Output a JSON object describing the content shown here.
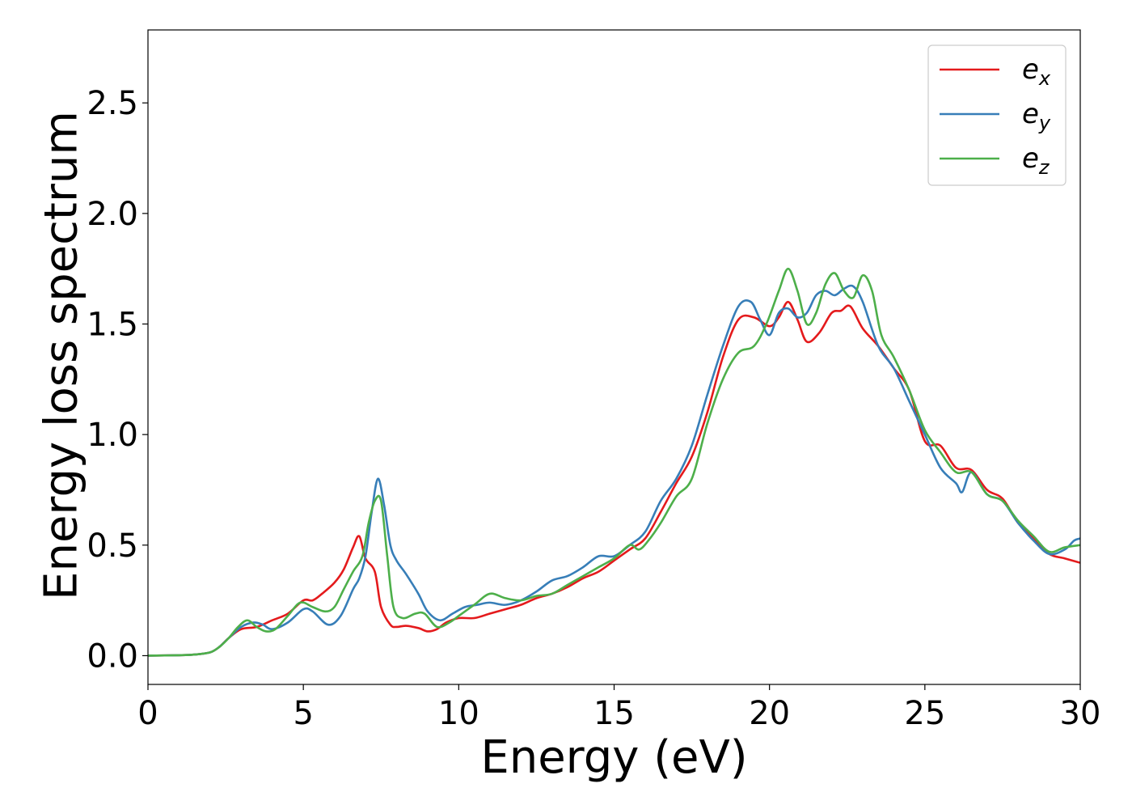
{
  "chart_data": {
    "type": "line",
    "title": "",
    "xlabel": "Energy (eV)",
    "ylabel": "Energy loss spectrum",
    "xlim": [
      0,
      30
    ],
    "ylim": [
      -0.13,
      2.83
    ],
    "xticks": [
      0,
      5,
      10,
      15,
      20,
      25,
      30
    ],
    "xtick_labels": [
      "0",
      "5",
      "10",
      "15",
      "20",
      "25",
      "30"
    ],
    "yticks": [
      0.0,
      0.5,
      1.0,
      1.5,
      2.0,
      2.5
    ],
    "ytick_labels": [
      "0.0",
      "0.5",
      "1.0",
      "1.5",
      "2.0",
      "2.5"
    ],
    "grid": false,
    "legend_position": "top-right",
    "series": [
      {
        "name": "e_x",
        "legend_base": "e",
        "legend_sub": "x",
        "color": "#e41a1c",
        "x": [
          0,
          1,
          1.5,
          2,
          2.3,
          2.6,
          3.0,
          3.5,
          4.0,
          4.5,
          5.0,
          5.3,
          5.6,
          6.0,
          6.3,
          6.6,
          6.8,
          7.0,
          7.3,
          7.5,
          7.8,
          8.0,
          8.3,
          8.7,
          9.0,
          9.3,
          9.6,
          10.0,
          10.5,
          11.0,
          11.5,
          12.0,
          12.5,
          13.0,
          13.5,
          14.0,
          14.5,
          15.0,
          15.5,
          16.0,
          16.5,
          17.0,
          17.5,
          18.0,
          18.5,
          19.0,
          19.5,
          20.0,
          20.3,
          20.6,
          20.9,
          21.2,
          21.6,
          22.0,
          22.3,
          22.6,
          23.0,
          23.5,
          24.0,
          24.5,
          25.0,
          25.5,
          26.0,
          26.5,
          27.0,
          27.5,
          28.0,
          28.5,
          29.0,
          29.5,
          30.0
        ],
        "y": [
          0,
          0.002,
          0.005,
          0.015,
          0.04,
          0.08,
          0.12,
          0.13,
          0.16,
          0.19,
          0.25,
          0.25,
          0.28,
          0.33,
          0.39,
          0.49,
          0.54,
          0.44,
          0.38,
          0.22,
          0.14,
          0.13,
          0.135,
          0.125,
          0.11,
          0.12,
          0.15,
          0.17,
          0.17,
          0.19,
          0.21,
          0.23,
          0.26,
          0.28,
          0.31,
          0.35,
          0.38,
          0.43,
          0.48,
          0.53,
          0.65,
          0.78,
          0.9,
          1.1,
          1.35,
          1.52,
          1.53,
          1.49,
          1.53,
          1.6,
          1.52,
          1.42,
          1.46,
          1.55,
          1.56,
          1.58,
          1.48,
          1.4,
          1.3,
          1.2,
          0.97,
          0.95,
          0.85,
          0.84,
          0.75,
          0.71,
          0.6,
          0.53,
          0.46,
          0.44,
          0.42
        ]
      },
      {
        "name": "e_y",
        "legend_base": "e",
        "legend_sub": "y",
        "color": "#377eb8",
        "x": [
          0,
          1,
          1.5,
          2,
          2.3,
          2.6,
          3.0,
          3.4,
          3.7,
          4.0,
          4.5,
          5.0,
          5.3,
          5.8,
          6.2,
          6.6,
          6.8,
          7.0,
          7.2,
          7.4,
          7.6,
          7.8,
          8.0,
          8.3,
          8.7,
          9.0,
          9.4,
          9.8,
          10.2,
          10.6,
          11.0,
          11.5,
          12.0,
          12.5,
          13.0,
          13.5,
          14.0,
          14.5,
          15.0,
          15.5,
          16.0,
          16.5,
          17.0,
          17.5,
          18.0,
          18.5,
          19.0,
          19.4,
          19.7,
          20.0,
          20.3,
          20.6,
          20.9,
          21.2,
          21.5,
          21.8,
          22.1,
          22.4,
          22.7,
          23.0,
          23.5,
          24.0,
          24.5,
          25.0,
          25.5,
          26.0,
          26.2,
          26.5,
          27.0,
          27.5,
          28.0,
          28.5,
          29.0,
          29.5,
          29.8,
          30.0
        ],
        "y": [
          0,
          0.002,
          0.005,
          0.015,
          0.04,
          0.08,
          0.13,
          0.15,
          0.14,
          0.12,
          0.15,
          0.21,
          0.2,
          0.14,
          0.18,
          0.3,
          0.35,
          0.45,
          0.65,
          0.8,
          0.68,
          0.5,
          0.43,
          0.37,
          0.28,
          0.2,
          0.16,
          0.19,
          0.22,
          0.23,
          0.24,
          0.23,
          0.25,
          0.29,
          0.34,
          0.36,
          0.4,
          0.45,
          0.45,
          0.5,
          0.56,
          0.7,
          0.8,
          0.95,
          1.18,
          1.4,
          1.58,
          1.6,
          1.52,
          1.45,
          1.55,
          1.57,
          1.53,
          1.55,
          1.63,
          1.65,
          1.63,
          1.66,
          1.67,
          1.6,
          1.4,
          1.3,
          1.15,
          1.0,
          0.85,
          0.78,
          0.74,
          0.83,
          0.73,
          0.7,
          0.6,
          0.52,
          0.46,
          0.48,
          0.52,
          0.53
        ]
      },
      {
        "name": "e_z",
        "legend_base": "e",
        "legend_sub": "z",
        "color": "#4daf4a",
        "x": [
          0,
          1,
          1.5,
          2,
          2.3,
          2.6,
          2.9,
          3.2,
          3.5,
          3.8,
          4.1,
          4.5,
          4.9,
          5.3,
          5.7,
          6.0,
          6.3,
          6.6,
          6.9,
          7.1,
          7.3,
          7.5,
          7.7,
          7.9,
          8.2,
          8.6,
          8.9,
          9.3,
          9.7,
          10.0,
          10.5,
          11.0,
          11.5,
          12.0,
          12.5,
          13.0,
          13.5,
          14.0,
          14.5,
          15.0,
          15.5,
          15.8,
          16.1,
          16.5,
          17.0,
          17.5,
          18.0,
          18.5,
          19.0,
          19.5,
          19.9,
          20.3,
          20.6,
          20.9,
          21.2,
          21.5,
          21.8,
          22.1,
          22.4,
          22.7,
          23.0,
          23.3,
          23.6,
          24.0,
          24.5,
          25.0,
          25.5,
          26.0,
          26.5,
          27.0,
          27.5,
          28.0,
          28.5,
          29.0,
          29.5,
          30.0
        ],
        "y": [
          0,
          0.002,
          0.005,
          0.015,
          0.04,
          0.08,
          0.13,
          0.16,
          0.13,
          0.11,
          0.12,
          0.18,
          0.24,
          0.22,
          0.2,
          0.22,
          0.3,
          0.38,
          0.45,
          0.6,
          0.7,
          0.7,
          0.45,
          0.22,
          0.17,
          0.19,
          0.19,
          0.13,
          0.15,
          0.18,
          0.23,
          0.28,
          0.26,
          0.25,
          0.27,
          0.28,
          0.32,
          0.36,
          0.4,
          0.44,
          0.5,
          0.48,
          0.52,
          0.6,
          0.72,
          0.8,
          1.05,
          1.25,
          1.37,
          1.4,
          1.5,
          1.65,
          1.75,
          1.65,
          1.5,
          1.55,
          1.68,
          1.73,
          1.65,
          1.62,
          1.72,
          1.65,
          1.45,
          1.35,
          1.2,
          1.02,
          0.92,
          0.83,
          0.83,
          0.73,
          0.7,
          0.61,
          0.54,
          0.47,
          0.49,
          0.5
        ]
      }
    ]
  }
}
